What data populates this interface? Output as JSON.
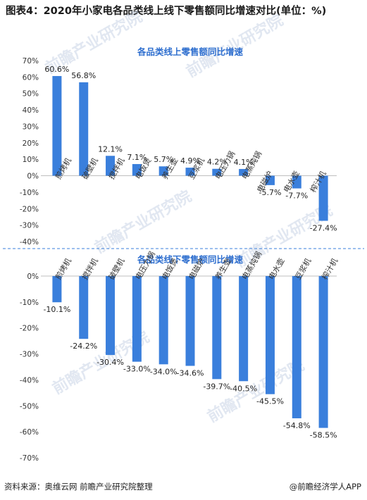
{
  "title": "图表4：2020年小家电各品类线上线下零售额同比增速对比(单位：%)",
  "footer": {
    "source": "资料来源：奥维云网 前瞻产业研究院整理",
    "brand": "@前瞻经济学人APP"
  },
  "watermark": "前瞻产业研究院",
  "colors": {
    "bar": "#3a7fdc",
    "chart_title": "#2f6fcf"
  },
  "chart_data": [
    {
      "type": "bar",
      "title": "各品类线上零售额同比增速",
      "ylim": [
        -40,
        70
      ],
      "yticks": [
        70,
        60,
        50,
        40,
        30,
        20,
        10,
        0,
        -10,
        -20,
        -30,
        -40
      ],
      "ytick_labels": [
        "70%",
        "60%",
        "50%",
        "40%",
        "30%",
        "20%",
        "10%",
        "0%",
        "-10%",
        "-20%",
        "-30%",
        "-40%"
      ],
      "categories": [
        "煎烤机",
        "破壁机",
        "搅拌机",
        "电饭煲",
        "养生壶",
        "豆浆机",
        "电压力锅",
        "电蒸炖锅",
        "电磁炉",
        "电水壶",
        "榨汁机"
      ],
      "values": [
        60.6,
        56.8,
        12.1,
        7.1,
        5.7,
        4.9,
        4.2,
        4.1,
        -5.7,
        -7.7,
        -27.4
      ],
      "value_labels": [
        "60.6%",
        "56.8%",
        "12.1%",
        "7.1%",
        "5.7%",
        "4.9%",
        "4.2%",
        "4.1%",
        "-5.7%",
        "-7.7%",
        "-27.4%"
      ],
      "grid": false
    },
    {
      "type": "bar",
      "title": "各品类线下零售额同比增速",
      "ylim": [
        -70,
        0
      ],
      "yticks": [
        0,
        -10,
        -20,
        -30,
        -40,
        -50,
        -60,
        -70
      ],
      "ytick_labels": [
        "0%",
        "-10%",
        "-20%",
        "-30%",
        "-40%",
        "-50%",
        "-60%",
        "-70%"
      ],
      "categories": [
        "煎烤机",
        "搅拌机",
        "破壁机",
        "电压力锅",
        "电饭煲",
        "电磁炉",
        "养生壶",
        "电蒸炖锅",
        "电水壶",
        "豆浆机",
        "榨汁机"
      ],
      "values": [
        -10.1,
        -24.2,
        -30.4,
        -33.0,
        -34.0,
        -34.6,
        -39.7,
        -40.5,
        -45.5,
        -54.8,
        -58.5
      ],
      "value_labels": [
        "-10.1%",
        "-24.2%",
        "-30.4%",
        "-33.0%",
        "-34.0%",
        "-34.6%",
        "-39.7%",
        "-40.5%",
        "-45.5%",
        "-54.8%",
        "-58.5%"
      ],
      "grid": false
    }
  ]
}
